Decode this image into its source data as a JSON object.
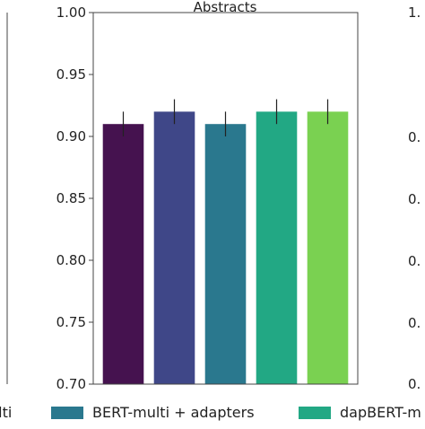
{
  "chart_data": {
    "type": "bar",
    "title": "Abstracts",
    "ylim": [
      0.7,
      1.0
    ],
    "yticks": [
      "0.70",
      "0.75",
      "0.80",
      "0.85",
      "0.90",
      "0.95",
      "1.00"
    ],
    "grid": false,
    "bars": [
      {
        "value": 0.91,
        "error": 0.01,
        "color": "#45124f"
      },
      {
        "value": 0.92,
        "error": 0.01,
        "color": "#3f4788"
      },
      {
        "value": 0.91,
        "error": 0.01,
        "color": "#2a788e"
      },
      {
        "value": 0.92,
        "error": 0.01,
        "color": "#22a884"
      },
      {
        "value": 0.92,
        "error": 0.01,
        "color": "#7ad151"
      }
    ],
    "legend": {
      "placement": "bottom",
      "entries": [
        {
          "label": "ulti",
          "color": "#3f4788",
          "show_swatch": false
        },
        {
          "label": "BERT-multi + adapters",
          "color": "#2a788e",
          "show_swatch": true
        },
        {
          "label": "dapBERT-m",
          "color": "#22a884",
          "show_swatch": true
        }
      ]
    },
    "right_panel_ytick_fragments": [
      "1.",
      "0.",
      "0.",
      "0.",
      "0.",
      "0."
    ]
  }
}
